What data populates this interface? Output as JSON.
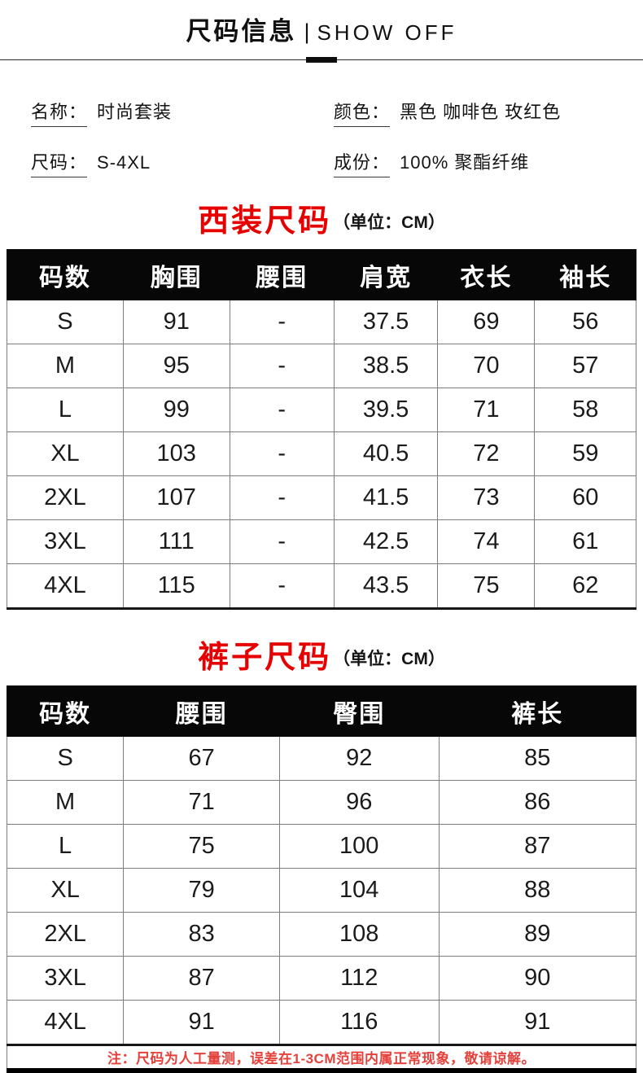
{
  "header": {
    "title_cn": "尺码信息",
    "divider": "|",
    "title_en": "SHOW OFF"
  },
  "product_info": {
    "name": {
      "label": "名称：",
      "value": "时尚套装"
    },
    "color": {
      "label": "颜色：",
      "value": "黑色 咖啡色 玫红色"
    },
    "size": {
      "label": "尺码：",
      "value": "S-4XL"
    },
    "material": {
      "label": "成份：",
      "value": "100% 聚酯纤维"
    }
  },
  "tables": {
    "suit": {
      "title": "西装尺码",
      "unit": "（单位：CM）",
      "columns": [
        "码数",
        "胸围",
        "腰围",
        "肩宽",
        "衣长",
        "袖长"
      ],
      "rows": [
        [
          "S",
          "91",
          "-",
          "37.5",
          "69",
          "56"
        ],
        [
          "M",
          "95",
          "-",
          "38.5",
          "70",
          "57"
        ],
        [
          "L",
          "99",
          "-",
          "39.5",
          "71",
          "58"
        ],
        [
          "XL",
          "103",
          "-",
          "40.5",
          "72",
          "59"
        ],
        [
          "2XL",
          "107",
          "-",
          "41.5",
          "73",
          "60"
        ],
        [
          "3XL",
          "111",
          "-",
          "42.5",
          "74",
          "61"
        ],
        [
          "4XL",
          "115",
          "-",
          "43.5",
          "75",
          "62"
        ]
      ]
    },
    "pants": {
      "title": "裤子尺码",
      "unit": "（单位：CM）",
      "columns": [
        "码数",
        "腰围",
        "臀围",
        "裤长"
      ],
      "rows": [
        [
          "S",
          "67",
          "92",
          "85"
        ],
        [
          "M",
          "71",
          "96",
          "86"
        ],
        [
          "L",
          "75",
          "100",
          "87"
        ],
        [
          "XL",
          "79",
          "104",
          "88"
        ],
        [
          "2XL",
          "83",
          "108",
          "89"
        ],
        [
          "3XL",
          "87",
          "112",
          "90"
        ],
        [
          "4XL",
          "91",
          "116",
          "91"
        ]
      ],
      "footnote": "注：尺码为人工量测，误差在1-3CM范围内属正常现象，敬请谅解。"
    }
  },
  "colors": {
    "accent_red": "#e60000",
    "footnote_red": "#e5413b",
    "table_header_bg": "#070707",
    "table_header_text": "#ffffff",
    "table_border": "#7d7d7d"
  }
}
